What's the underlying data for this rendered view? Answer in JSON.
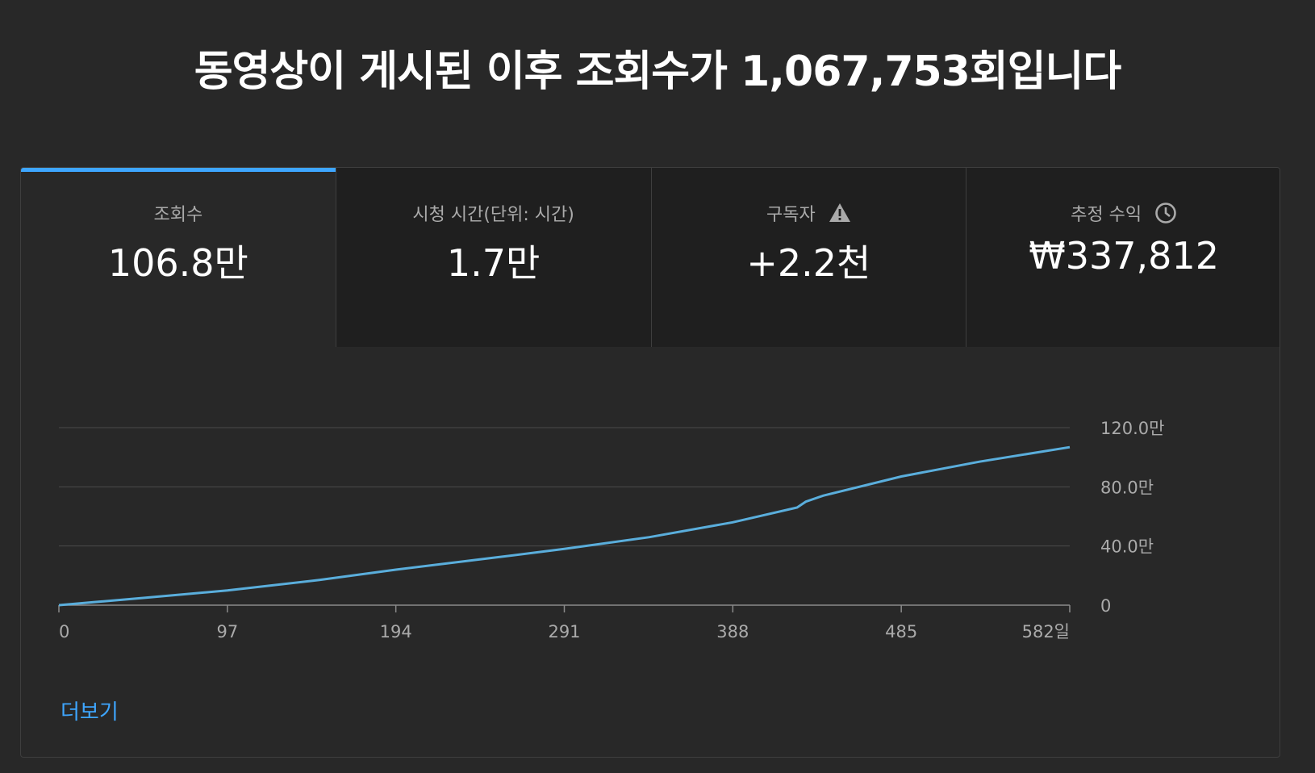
{
  "headline": "동영상이 게시된 이후 조회수가 1,067,753회입니다",
  "tabs": [
    {
      "label": "조회수",
      "value": "106.8만",
      "icon": ""
    },
    {
      "label": "시청 시간(단위: 시간)",
      "value": "1.7만",
      "icon": ""
    },
    {
      "label": "구독자",
      "value": "+2.2천",
      "icon": "warning-icon"
    },
    {
      "label": "추정 수익",
      "value": "₩337,812",
      "icon": "clock-icon"
    }
  ],
  "more_label": "더보기",
  "colors": {
    "accent": "#3ea6ff",
    "series": "#5aaedc",
    "background": "#282828",
    "tab_inactive": "#1f1f1f"
  },
  "chart_data": {
    "type": "line",
    "title": "",
    "xlabel": "",
    "ylabel": "",
    "x_ticks": [
      "0",
      "97",
      "194",
      "291",
      "388",
      "485",
      "582일"
    ],
    "x_tick_values": [
      0,
      97,
      194,
      291,
      388,
      485,
      582
    ],
    "y_ticks": [
      "0",
      "40.0만",
      "80.0만",
      "120.0만"
    ],
    "y_tick_values": [
      0,
      400000,
      800000,
      1200000
    ],
    "xlim": [
      0,
      582
    ],
    "ylim": [
      0,
      1200000
    ],
    "grid": true,
    "legend": "none",
    "series": [
      {
        "name": "",
        "x": [
          0,
          20,
          50,
          97,
          150,
          194,
          250,
          291,
          340,
          388,
          425,
          430,
          440,
          485,
          530,
          582
        ],
        "y": [
          0,
          20000,
          50000,
          100000,
          170000,
          240000,
          320000,
          380000,
          460000,
          560000,
          660000,
          700000,
          740000,
          870000,
          970000,
          1067753
        ]
      }
    ]
  }
}
